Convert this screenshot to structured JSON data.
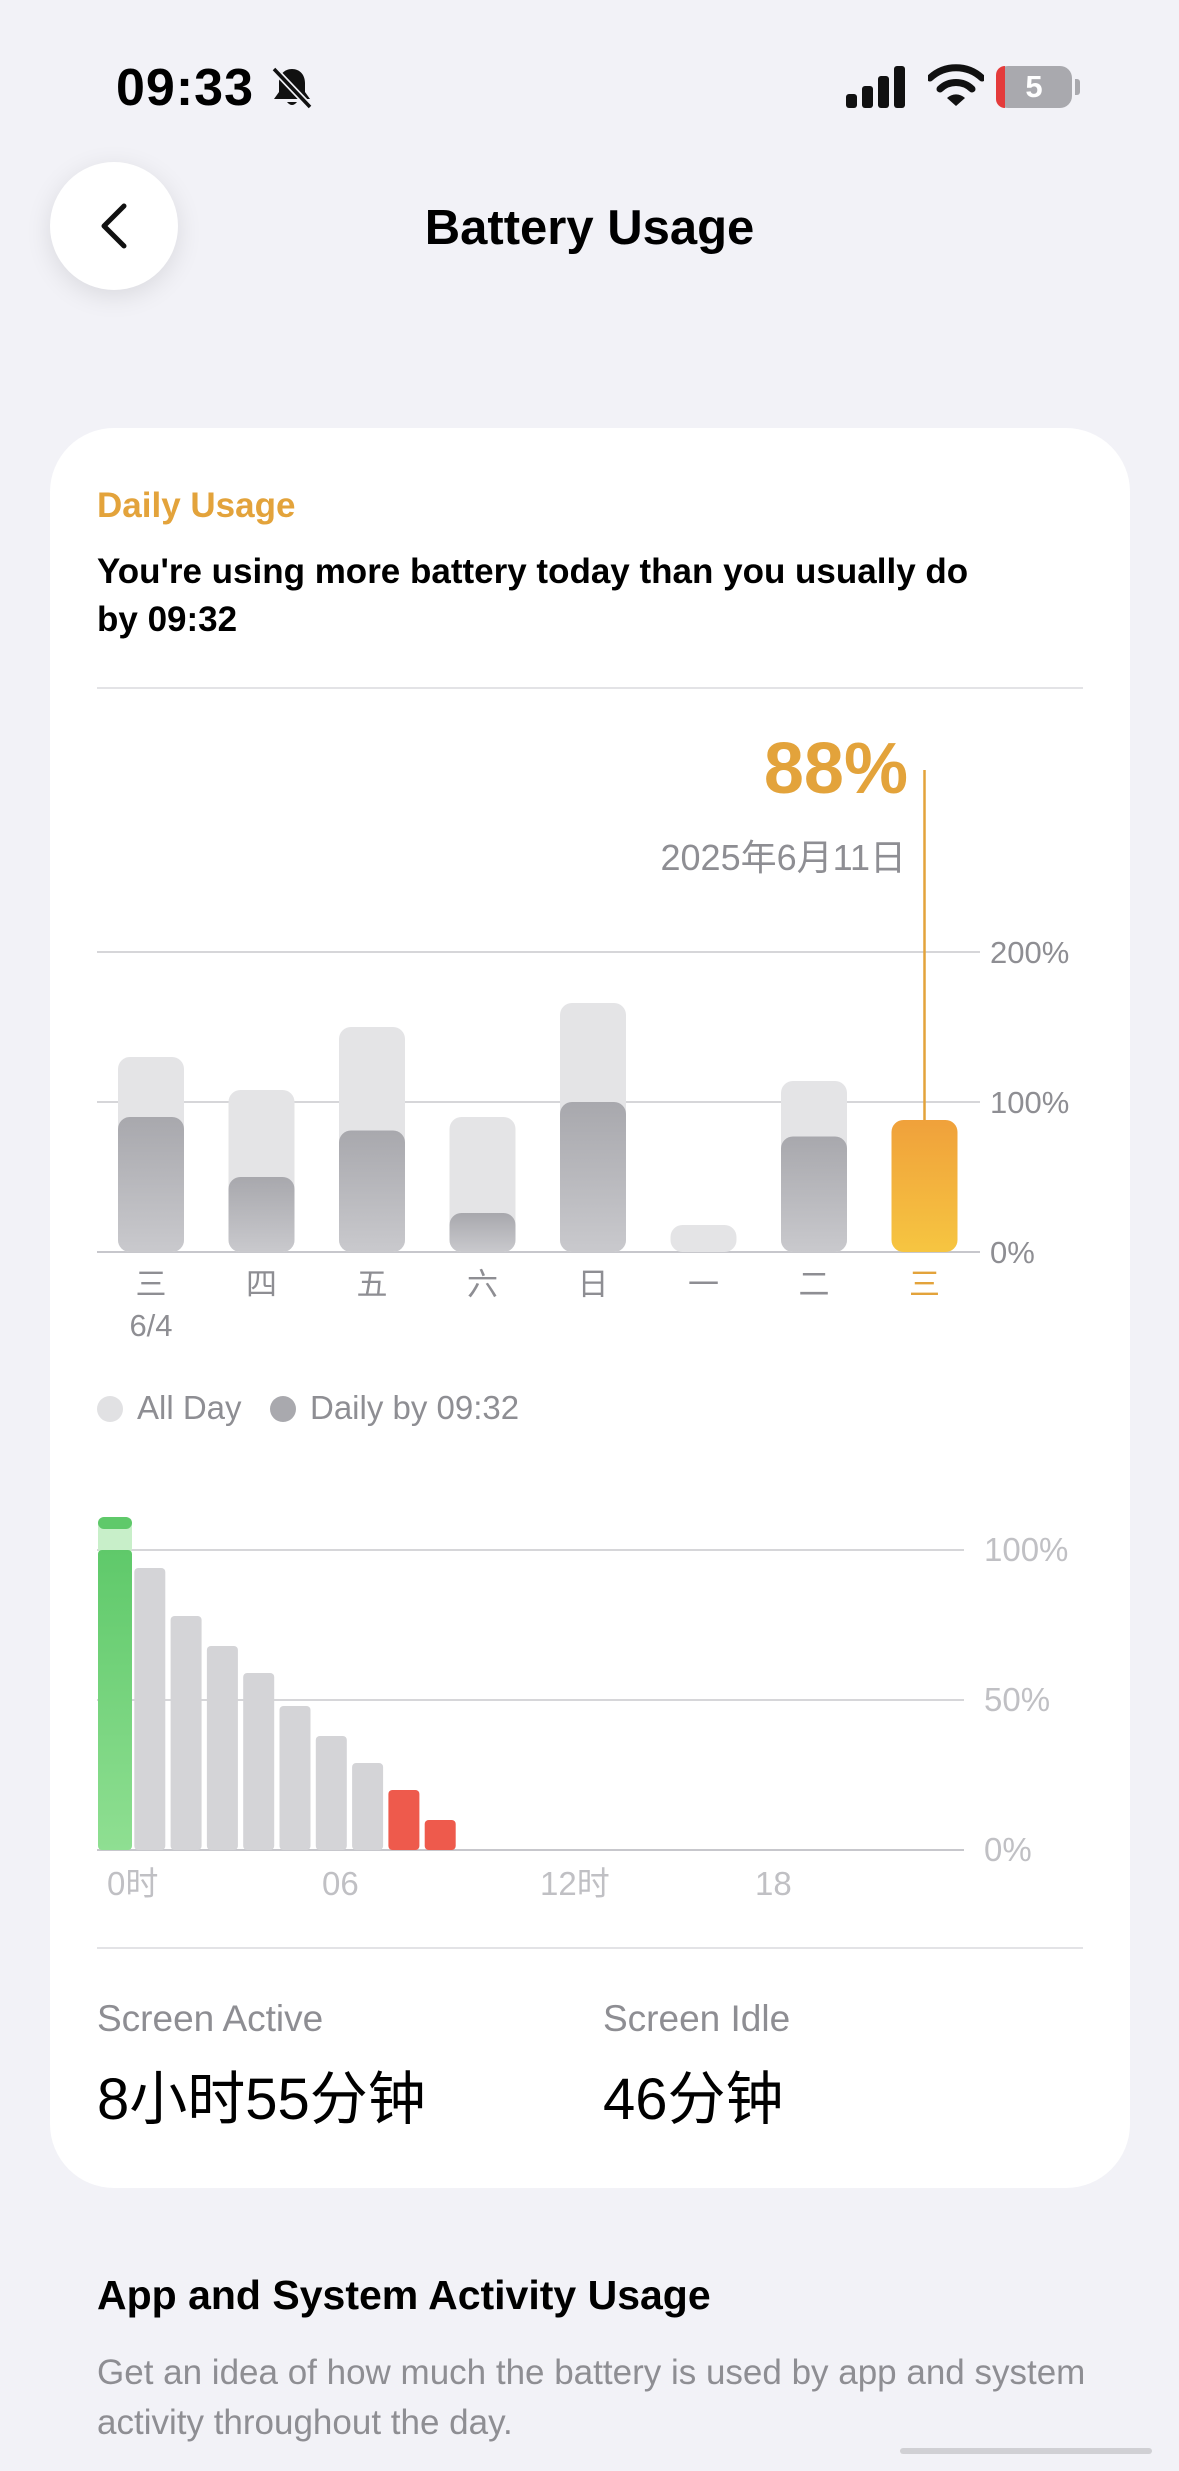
{
  "status_bar": {
    "time": "09:33",
    "silent_icon": "bell-slash-icon",
    "battery_level": "5"
  },
  "nav": {
    "title": "Battery Usage",
    "back_icon": "chevron-left-icon"
  },
  "daily_card": {
    "title": "Daily Usage",
    "description": "You're using more battery today than you usually do by 09:32",
    "accent_color": "#e3a33b",
    "legend": {
      "all_day": "All Day",
      "daily_by": "Daily by 09:32"
    },
    "stats": {
      "screen_active_label": "Screen Active",
      "screen_active_value": "8小时55分钟",
      "screen_idle_label": "Screen Idle",
      "screen_idle_value": "46分钟"
    }
  },
  "chart_data": [
    {
      "type": "bar",
      "categories": [
        "三",
        "四",
        "五",
        "六",
        "日",
        "一",
        "二",
        "三"
      ],
      "first_date_label": "6/4",
      "series": [
        {
          "name": "All Day",
          "values": [
            130,
            108,
            150,
            90,
            166,
            18,
            114,
            null
          ]
        },
        {
          "name": "Daily by 09:32",
          "values": [
            90,
            50,
            81,
            26,
            100,
            0,
            77,
            88
          ]
        }
      ],
      "ylim": [
        0,
        200
      ],
      "y_ticks": [
        "200%",
        "100%",
        "0%"
      ],
      "selected": {
        "index": 7,
        "value_label": "88%",
        "date_label": "2025年6月11日"
      },
      "grid": true
    },
    {
      "type": "bar",
      "x_ticks": [
        "0时",
        "06",
        "12时",
        "18"
      ],
      "values": [
        100,
        94,
        78,
        68,
        59,
        48,
        38,
        29,
        20,
        10
      ],
      "charging_top": 111,
      "low_threshold": 20,
      "ylim": [
        0,
        100
      ],
      "y_ticks": [
        "100%",
        "50%",
        "0%"
      ],
      "grid": true
    }
  ],
  "app_activity": {
    "title": "App and System Activity Usage",
    "description": "Get an idea of how much the battery is used by app and system activity throughout the day."
  }
}
